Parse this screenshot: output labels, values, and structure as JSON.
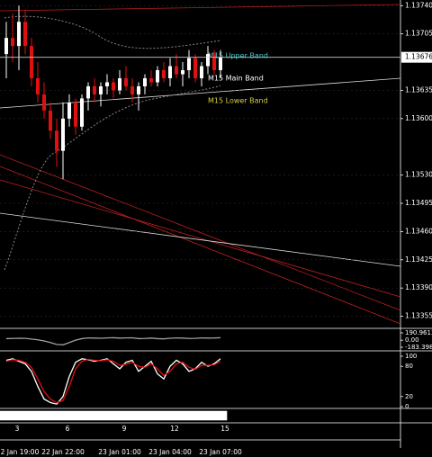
{
  "chart_data": [
    {
      "type": "candlestick",
      "categories": [
        null,
        "2 Jan 19:00",
        null,
        null,
        null,
        null,
        null,
        null,
        null,
        "22 Jan 22:00",
        null,
        null,
        null,
        null,
        null,
        null,
        null,
        null,
        "23 Jan 01:00",
        null,
        null,
        null,
        null,
        null,
        null,
        null,
        "23 Jan 04:00",
        null,
        null,
        null,
        null,
        null,
        null,
        null,
        "23 Jan 07:00"
      ],
      "hour_labels": [
        null,
        "3",
        null,
        null,
        null,
        null,
        null,
        null,
        null,
        "6",
        null,
        null,
        null,
        null,
        null,
        null,
        null,
        null,
        "9",
        null,
        null,
        null,
        null,
        null,
        null,
        null,
        "12",
        null,
        null,
        null,
        null,
        null,
        null,
        null,
        "15"
      ],
      "open": [
        1.1368,
        1.137,
        1.1369,
        1.1372,
        1.1369,
        1.1365,
        1.1363,
        1.1361,
        1.13585,
        1.1356,
        1.136,
        1.1362,
        1.1359,
        1.13625,
        1.1364,
        1.1363,
        1.1364,
        1.13645,
        1.13635,
        1.1365,
        1.1364,
        1.1363,
        1.1364,
        1.1365,
        1.13645,
        1.1366,
        1.1365,
        1.13665,
        1.13655,
        1.1366,
        1.13675,
        1.1365,
        1.13665,
        1.1368,
        1.1366
      ],
      "high": [
        1.1372,
        1.1373,
        1.1374,
        1.13735,
        1.137,
        1.1367,
        1.13645,
        1.1362,
        1.136,
        1.1362,
        1.1363,
        1.13625,
        1.1363,
        1.13645,
        1.1365,
        1.13645,
        1.13655,
        1.1365,
        1.1366,
        1.13665,
        1.1365,
        1.13645,
        1.13655,
        1.1366,
        1.13665,
        1.1367,
        1.13675,
        1.1368,
        1.1367,
        1.13685,
        1.1368,
        1.1367,
        1.1369,
        1.13685,
        1.13685
      ],
      "low": [
        1.1365,
        1.1367,
        1.1366,
        1.1368,
        1.1364,
        1.1362,
        1.136,
        1.13575,
        1.1354,
        1.13525,
        1.1359,
        1.1358,
        1.13585,
        1.1361,
        1.1362,
        1.13615,
        1.1363,
        1.13625,
        1.1363,
        1.13635,
        1.1362,
        1.1361,
        1.1363,
        1.1364,
        1.1364,
        1.13645,
        1.1364,
        1.1365,
        1.1364,
        1.1365,
        1.13645,
        1.1364,
        1.13655,
        1.13655,
        1.1365
      ],
      "close": [
        1.137,
        1.1369,
        1.1372,
        1.1369,
        1.1365,
        1.1363,
        1.1361,
        1.13585,
        1.1356,
        1.136,
        1.1362,
        1.1359,
        1.13625,
        1.1364,
        1.1363,
        1.1364,
        1.13645,
        1.13635,
        1.1365,
        1.1364,
        1.1363,
        1.1364,
        1.1365,
        1.13645,
        1.1366,
        1.1365,
        1.13665,
        1.13655,
        1.1366,
        1.13675,
        1.1365,
        1.13665,
        1.1368,
        1.1366,
        1.13676
      ],
      "up_color": "#ffffff",
      "down_color": "#e01010",
      "ylim": [
        1.1334,
        1.13747
      ],
      "yticks": [
        {
          "value": 1.1374,
          "label": "1.13740"
        },
        1.13705,
        1.13635,
        {
          "value": 1.136,
          "label": "1.13600"
        },
        {
          "value": 1.1353,
          "label": "1.13530"
        },
        1.13495,
        {
          "value": 1.1346,
          "label": "1.13460"
        },
        1.13425,
        {
          "value": 1.1339,
          "label": "1.13390"
        },
        1.13355
      ],
      "current_price": 1.13676,
      "annotations": [
        "M15 Upper Band",
        "M15 Main Band",
        "M15 Lower Band"
      ]
    },
    {
      "type": "line",
      "series": [
        {
          "color": "#a0a0a0",
          "values": [
            40,
            45,
            50,
            48,
            30,
            10,
            -20,
            -60,
            -110,
            -120,
            -60,
            0,
            40,
            60,
            55,
            50,
            60,
            65,
            55,
            60,
            62,
            40,
            45,
            55,
            40,
            35,
            50,
            60,
            55,
            45,
            48,
            60,
            55,
            58,
            65
          ]
        }
      ],
      "ylim": [
        -183.3988,
        190.9613
      ],
      "yticks": [
        {
          "value": 190.9613,
          "label": "190.9613"
        },
        {
          "value": 0,
          "label": "0.00"
        },
        {
          "value": -183.3988,
          "label": "-183.3988"
        }
      ]
    },
    {
      "type": "line",
      "series": [
        {
          "color": "#ffffff",
          "values": [
            92,
            95,
            90,
            85,
            70,
            40,
            15,
            8,
            5,
            20,
            60,
            88,
            95,
            93,
            90,
            92,
            95,
            85,
            75,
            88,
            92,
            70,
            80,
            90,
            65,
            55,
            80,
            92,
            85,
            70,
            75,
            88,
            80,
            85,
            95
          ]
        },
        {
          "color": "#e01010",
          "values": [
            90,
            93,
            92,
            88,
            78,
            55,
            30,
            15,
            8,
            12,
            40,
            75,
            90,
            94,
            92,
            91,
            93,
            90,
            82,
            84,
            88,
            80,
            78,
            85,
            75,
            62,
            70,
            85,
            88,
            78,
            74,
            82,
            82,
            83,
            90
          ]
        }
      ],
      "ylim": [
        0,
        100
      ],
      "yticks": [
        100,
        80,
        20,
        0
      ]
    }
  ]
}
